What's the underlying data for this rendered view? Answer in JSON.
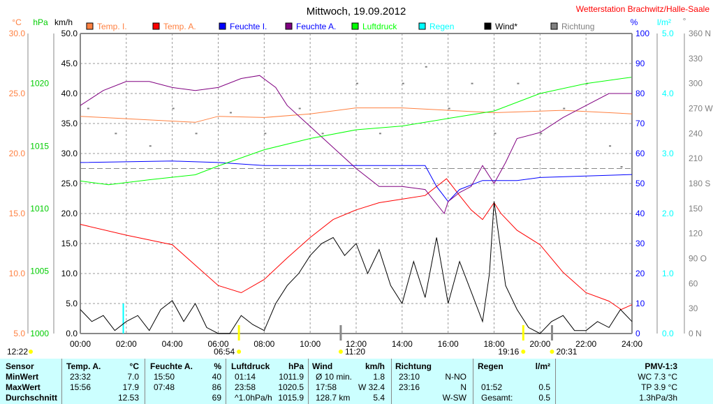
{
  "title": "Mittwoch, 19.09.2012",
  "station": "Wetterstation Brachwitz/Halle-Saale",
  "legend": [
    {
      "label": "Temp. I.",
      "color": "#ff8040",
      "text_color": "#ff8040"
    },
    {
      "label": "Temp. A.",
      "color": "#ff0000",
      "text_color": "#ff8040"
    },
    {
      "label": "Feuchte I.",
      "color": "#0000ff",
      "text_color": "#0000ff"
    },
    {
      "label": "Feuchte A.",
      "color": "#800080",
      "text_color": "#0000ff"
    },
    {
      "label": "Luftdruck",
      "color": "#00ff00",
      "text_color": "#00ff00"
    },
    {
      "label": "Regen",
      "color": "#00ffff",
      "text_color": "#00ffff"
    },
    {
      "label": "Wind*",
      "color": "#000000",
      "text_color": "#000000"
    },
    {
      "label": "Richtung",
      "color": "#808080",
      "text_color": "#808080"
    }
  ],
  "axis_units": {
    "temp": "°C",
    "pressure": "hPa",
    "wind": "km/h",
    "humidity": "%",
    "rain": "l/m²",
    "direction": "°"
  },
  "sun_markers": [
    {
      "time": "12:22",
      "hour": null,
      "kind": "moon"
    },
    {
      "time": "06:54",
      "hour": 6.9,
      "kind": "sunrise"
    },
    {
      "time": "11:20",
      "hour": 11.33,
      "kind": "moon-up"
    },
    {
      "time": "19:16",
      "hour": 19.27,
      "kind": "sunset"
    },
    {
      "time": "20:31",
      "hour": 20.52,
      "kind": "moon-set"
    }
  ],
  "chart_data": {
    "type": "line",
    "title": "Mittwoch, 19.09.2012",
    "x_ticks": [
      "00:00",
      "02:00",
      "04:00",
      "06:00",
      "08:00",
      "10:00",
      "12:00",
      "14:00",
      "16:00",
      "18:00",
      "20:00",
      "22:00",
      "24:00"
    ],
    "xlim": [
      0,
      24
    ],
    "axes": {
      "wind": {
        "range": [
          0,
          50
        ],
        "ticks": [
          "0.0",
          "5.0",
          "10.0",
          "15.0",
          "20.0",
          "25.0",
          "30.0",
          "35.0",
          "40.0",
          "45.0",
          "50.0"
        ]
      },
      "temp": {
        "range": [
          5,
          30
        ],
        "ticks": [
          "5.0",
          "10.0",
          "15.0",
          "20.0",
          "25.0",
          "30.0"
        ]
      },
      "pressure": {
        "range": [
          1000,
          1024
        ],
        "ticks": [
          "1000",
          "1005",
          "1010",
          "1015",
          "1020"
        ]
      },
      "humidity": {
        "range": [
          0,
          100
        ],
        "ticks": [
          "0",
          "10",
          "20",
          "30",
          "40",
          "50",
          "60",
          "70",
          "80",
          "90",
          "100"
        ]
      },
      "rain": {
        "range": [
          0,
          5
        ],
        "ticks": [
          "0.0",
          "1.0",
          "2.0",
          "3.0",
          "4.0",
          "5.0"
        ]
      },
      "direction": {
        "range": [
          0,
          360
        ],
        "ticks": [
          "0 N",
          "30",
          "60",
          "90 O",
          "120",
          "150",
          "180 S",
          "210",
          "240",
          "270 W",
          "300",
          "330",
          "360 N"
        ]
      }
    },
    "series": [
      {
        "name": "Temp. I.",
        "axis": "temp",
        "color": "#ff8040",
        "points": [
          [
            0,
            23.1
          ],
          [
            2,
            22.9
          ],
          [
            5,
            22.6
          ],
          [
            6,
            23.1
          ],
          [
            8,
            23.0
          ],
          [
            10,
            23.3
          ],
          [
            12,
            23.8
          ],
          [
            14,
            23.8
          ],
          [
            16,
            23.6
          ],
          [
            18,
            23.4
          ],
          [
            21,
            23.6
          ],
          [
            24,
            23.3
          ]
        ]
      },
      {
        "name": "Temp. A.",
        "axis": "temp",
        "color": "#ff0000",
        "points": [
          [
            0,
            14.1
          ],
          [
            2,
            13.2
          ],
          [
            4,
            12.4
          ],
          [
            5,
            10.7
          ],
          [
            6,
            9.0
          ],
          [
            7,
            8.4
          ],
          [
            8,
            9.5
          ],
          [
            9,
            11.3
          ],
          [
            10,
            13.0
          ],
          [
            11,
            14.5
          ],
          [
            12,
            15.3
          ],
          [
            13,
            15.9
          ],
          [
            14,
            16.2
          ],
          [
            15,
            16.5
          ],
          [
            15.93,
            17.9
          ],
          [
            16.5,
            16.5
          ],
          [
            17,
            15.3
          ],
          [
            17.5,
            14.5
          ],
          [
            18,
            15.9
          ],
          [
            18.3,
            15.0
          ],
          [
            19,
            13.6
          ],
          [
            20,
            12.4
          ],
          [
            21,
            10.1
          ],
          [
            22,
            8.4
          ],
          [
            23,
            7.7
          ],
          [
            23.53,
            7.0
          ],
          [
            24,
            7.4
          ]
        ]
      },
      {
        "name": "Feuchte I.",
        "axis": "humidity",
        "color": "#0000ff",
        "points": [
          [
            0,
            57
          ],
          [
            4,
            57.5
          ],
          [
            6,
            57
          ],
          [
            8,
            56
          ],
          [
            12,
            56
          ],
          [
            15,
            56
          ],
          [
            15.5,
            49
          ],
          [
            16,
            44
          ],
          [
            16.5,
            48
          ],
          [
            17.5,
            51
          ],
          [
            19,
            51
          ],
          [
            20,
            52
          ],
          [
            22,
            52.5
          ],
          [
            24,
            53
          ]
        ]
      },
      {
        "name": "Feuchte A.",
        "axis": "humidity",
        "color": "#800080",
        "points": [
          [
            0,
            76
          ],
          [
            1,
            81
          ],
          [
            2,
            84
          ],
          [
            3,
            84
          ],
          [
            4,
            82
          ],
          [
            5,
            81
          ],
          [
            6,
            82
          ],
          [
            7,
            85
          ],
          [
            7.8,
            86
          ],
          [
            8.5,
            82
          ],
          [
            9,
            76
          ],
          [
            10,
            69
          ],
          [
            11,
            62
          ],
          [
            12,
            55
          ],
          [
            13,
            49
          ],
          [
            14,
            49
          ],
          [
            15,
            48
          ],
          [
            15.83,
            40
          ],
          [
            16,
            44
          ],
          [
            16.5,
            47
          ],
          [
            17,
            49
          ],
          [
            17.5,
            56
          ],
          [
            18,
            50
          ],
          [
            18.5,
            57
          ],
          [
            19,
            65
          ],
          [
            20,
            67
          ],
          [
            21,
            72
          ],
          [
            22,
            76
          ],
          [
            23,
            80
          ],
          [
            24,
            80
          ]
        ]
      },
      {
        "name": "Luftdruck",
        "axis": "pressure",
        "color": "#00ff00",
        "points": [
          [
            0,
            1012.2
          ],
          [
            1.23,
            1011.9
          ],
          [
            3,
            1012.3
          ],
          [
            5,
            1012.7
          ],
          [
            6,
            1013.4
          ],
          [
            8,
            1014.7
          ],
          [
            10,
            1015.6
          ],
          [
            12,
            1016.3
          ],
          [
            14,
            1016.6
          ],
          [
            16,
            1017.2
          ],
          [
            18,
            1017.8
          ],
          [
            20,
            1019.2
          ],
          [
            22,
            1020.0
          ],
          [
            23.97,
            1020.5
          ]
        ]
      },
      {
        "name": "Wind*",
        "axis": "wind",
        "color": "#000000",
        "points": [
          [
            0,
            4
          ],
          [
            0.5,
            2
          ],
          [
            1,
            3
          ],
          [
            1.5,
            0.5
          ],
          [
            2,
            2
          ],
          [
            2.5,
            3
          ],
          [
            3,
            0.5
          ],
          [
            3.5,
            4
          ],
          [
            4,
            5.5
          ],
          [
            4.5,
            2
          ],
          [
            5,
            5
          ],
          [
            5.5,
            1
          ],
          [
            6,
            0
          ],
          [
            6.5,
            0
          ],
          [
            7,
            3
          ],
          [
            7.5,
            1.5
          ],
          [
            8,
            0.5
          ],
          [
            8.5,
            5
          ],
          [
            9,
            8
          ],
          [
            9.5,
            10
          ],
          [
            10,
            13
          ],
          [
            10.5,
            15
          ],
          [
            11,
            16
          ],
          [
            11.5,
            13
          ],
          [
            12,
            15
          ],
          [
            12.5,
            10
          ],
          [
            13,
            14
          ],
          [
            13.5,
            8
          ],
          [
            14,
            5
          ],
          [
            14.5,
            12
          ],
          [
            15,
            6
          ],
          [
            15.5,
            16
          ],
          [
            16,
            5
          ],
          [
            16.5,
            12
          ],
          [
            17,
            7
          ],
          [
            17.5,
            2
          ],
          [
            17.8,
            10
          ],
          [
            18,
            22
          ],
          [
            18.5,
            8
          ],
          [
            19,
            4
          ],
          [
            19.5,
            1
          ],
          [
            20,
            0
          ],
          [
            20.5,
            2
          ],
          [
            21,
            3
          ],
          [
            21.5,
            0.5
          ],
          [
            22,
            0.5
          ],
          [
            22.5,
            2
          ],
          [
            23,
            1
          ],
          [
            23.5,
            4
          ],
          [
            24,
            2
          ]
        ]
      }
    ],
    "rain_bars": [
      {
        "hour": 1.87,
        "value": 0.5
      }
    ],
    "direction_samples": [
      [
        0.3,
        270
      ],
      [
        1.5,
        240
      ],
      [
        3,
        225
      ],
      [
        4,
        270
      ],
      [
        5,
        240
      ],
      [
        6.5,
        265
      ],
      [
        8,
        240
      ],
      [
        9.5,
        270
      ],
      [
        10.5,
        240
      ],
      [
        12,
        300
      ],
      [
        13,
        240
      ],
      [
        14,
        300
      ],
      [
        15,
        320
      ],
      [
        16,
        270
      ],
      [
        17,
        300
      ],
      [
        18,
        240
      ],
      [
        19,
        300
      ],
      [
        20,
        240
      ],
      [
        21,
        270
      ],
      [
        22,
        300
      ],
      [
        23,
        225
      ],
      [
        23.5,
        200
      ]
    ],
    "reference_line": {
      "axis": "wind",
      "value": 27.5
    }
  },
  "table": {
    "headers": {
      "sensor": "Sensor",
      "temp": "Temp. A.",
      "temp_unit": "°C",
      "hum": "Feuchte A.",
      "hum_unit": "%",
      "press": "Luftdruck",
      "press_unit": "hPa",
      "wind": "Wind",
      "wind_unit": "km/h",
      "dir": "Richtung",
      "rain": "Regen",
      "rain_unit": "l/m²",
      "pmv": "PMV-1:3"
    },
    "rows": [
      {
        "label": "MinWert",
        "temp_t": "23:32",
        "temp_v": "7.0",
        "hum_t": "15:50",
        "hum_v": "40",
        "press_t": "01:14",
        "press_v": "1011.9",
        "wind_t": "Ø 10 min.",
        "wind_v": "1.8",
        "dir_t": "23:10",
        "dir_v": "N-NO",
        "rain_t": "",
        "rain_v": "",
        "pmv": "WC 7.3 °C"
      },
      {
        "label": "MaxWert",
        "temp_t": "15:56",
        "temp_v": "17.9",
        "hum_t": "07:48",
        "hum_v": "86",
        "press_t": "23:58",
        "press_v": "1020.5",
        "wind_t": "17:58",
        "wind_v": "W 32.4",
        "dir_t": "23:16",
        "dir_v": "N",
        "rain_t": "01:52",
        "rain_v": "0.5",
        "pmv": "TP 3.9 °C"
      },
      {
        "label": "Durchschnitt",
        "temp_t": "",
        "temp_v": "12.53",
        "hum_t": "",
        "hum_v": "69",
        "press_t": "^1.0hPa/h",
        "press_v": "1015.9",
        "wind_t": "128.7 km",
        "wind_v": "5.4",
        "dir_t": "",
        "dir_v": "W-SW",
        "rain_t": "Gesamt:",
        "rain_v": "0.5",
        "pmv": "1.3hPa/3h"
      }
    ]
  }
}
